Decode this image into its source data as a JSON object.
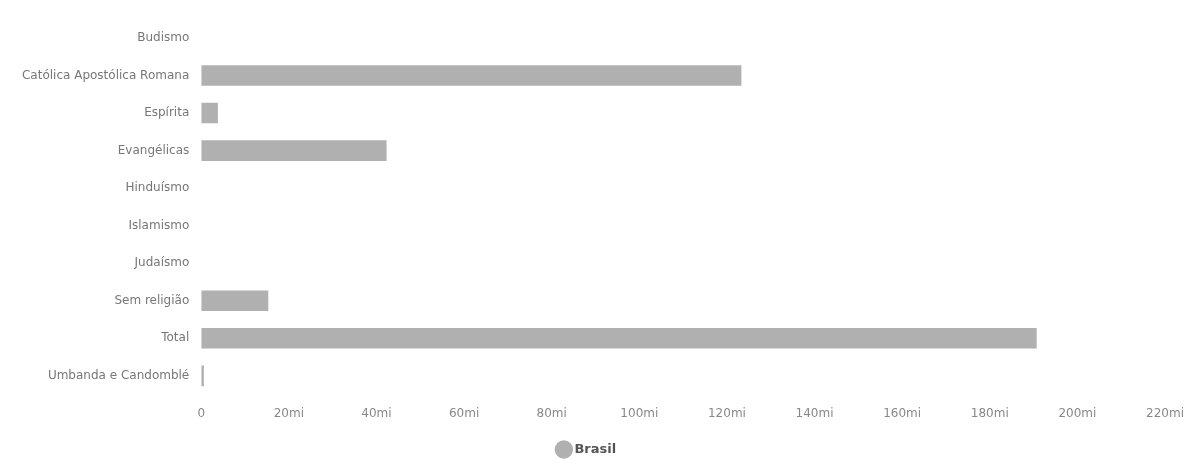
{
  "chart_data": {
    "type": "bar",
    "orientation": "horizontal",
    "categories": [
      "Budismo",
      "Católica Apostólica Romana",
      "Espírita",
      "Evangélicas",
      "Hinduísmo",
      "Islamismo",
      "Judaísmo",
      "Sem religião",
      "Total",
      "Umbanda e Candomblé"
    ],
    "series": [
      {
        "name": "Brasil",
        "color": "#b0b0b0",
        "values": [
          null,
          123.3,
          3.8,
          42.3,
          0.0,
          0.0,
          null,
          15.3,
          190.7,
          0.6
        ]
      }
    ],
    "xlim": [
      0,
      220
    ],
    "xticks": [
      0,
      {
        "value": 20,
        "label": "20mi"
      },
      {
        "value": 40,
        "label": "40mi"
      },
      {
        "value": 60,
        "label": "60mi"
      },
      {
        "value": 80,
        "label": "80mi"
      },
      {
        "value": 100,
        "label": "100mi"
      },
      {
        "value": 120,
        "label": "120mi"
      },
      {
        "value": 140,
        "label": "140mi"
      },
      {
        "value": 160,
        "label": "160mi"
      },
      {
        "value": 180,
        "label": "180mi"
      },
      {
        "value": 200,
        "label": "200mi"
      },
      {
        "value": 220,
        "label": "220mi"
      }
    ],
    "grid": false,
    "legend": "bottom"
  }
}
